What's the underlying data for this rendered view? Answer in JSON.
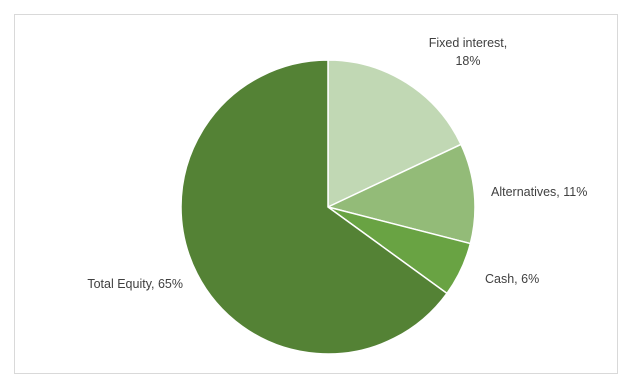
{
  "chart_data": {
    "type": "pie",
    "title": "",
    "start_angle_deg": 0,
    "direction": "clockwise",
    "slices": [
      {
        "name": "Fixed interest",
        "value": 18,
        "label_lines": [
          "Fixed interest,",
          "18%"
        ],
        "color": "#c1d8b4"
      },
      {
        "name": "Alternatives",
        "value": 11,
        "label_lines": [
          "Alternatives, 11%"
        ],
        "color": "#93bb78"
      },
      {
        "name": "Cash",
        "value": 6,
        "label_lines": [
          "Cash, 6%"
        ],
        "color": "#69a343"
      },
      {
        "name": "Total Equity",
        "value": 65,
        "label_lines": [
          "Total Equity, 65%"
        ],
        "color": "#548235"
      }
    ],
    "legend": "none",
    "slice_border_color": "#ffffff"
  }
}
